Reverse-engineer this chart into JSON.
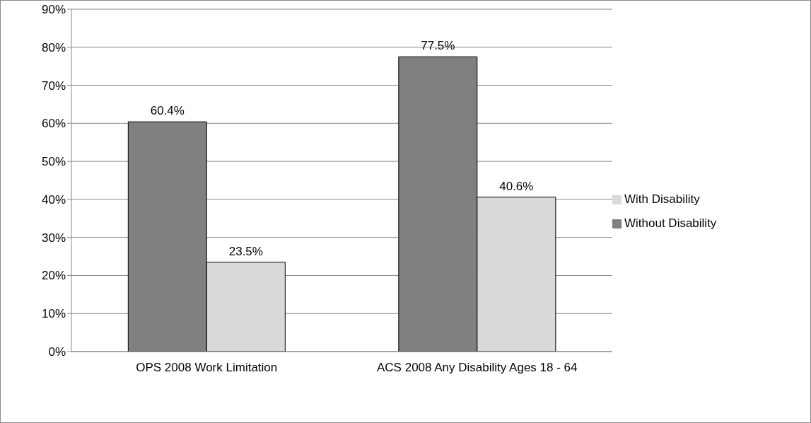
{
  "chart_data": {
    "type": "bar",
    "categories": [
      "OPS 2008 Work Limitation",
      "ACS 2008 Any Disability Ages 18 - 64"
    ],
    "series": [
      {
        "name": "Without Disability",
        "color": "#808080",
        "values": [
          60.4,
          77.5
        ],
        "value_labels": [
          "60.4%",
          "77.5%"
        ]
      },
      {
        "name": "With Disability",
        "color": "#d9d9d9",
        "values": [
          23.5,
          40.6
        ],
        "value_labels": [
          "23.5%",
          "40.6%"
        ]
      }
    ],
    "ylim": [
      0,
      90
    ],
    "yticks": [
      {
        "value": 0,
        "label": "0%"
      },
      {
        "value": 10,
        "label": "10%"
      },
      {
        "value": 20,
        "label": "20%"
      },
      {
        "value": 30,
        "label": "30%"
      },
      {
        "value": 40,
        "label": "40%"
      },
      {
        "value": 50,
        "label": "50%"
      },
      {
        "value": 60,
        "label": "60%"
      },
      {
        "value": 70,
        "label": "70%"
      },
      {
        "value": 80,
        "label": "80%"
      },
      {
        "value": 90,
        "label": "90%"
      }
    ],
    "grid": "y",
    "legend": "right"
  }
}
